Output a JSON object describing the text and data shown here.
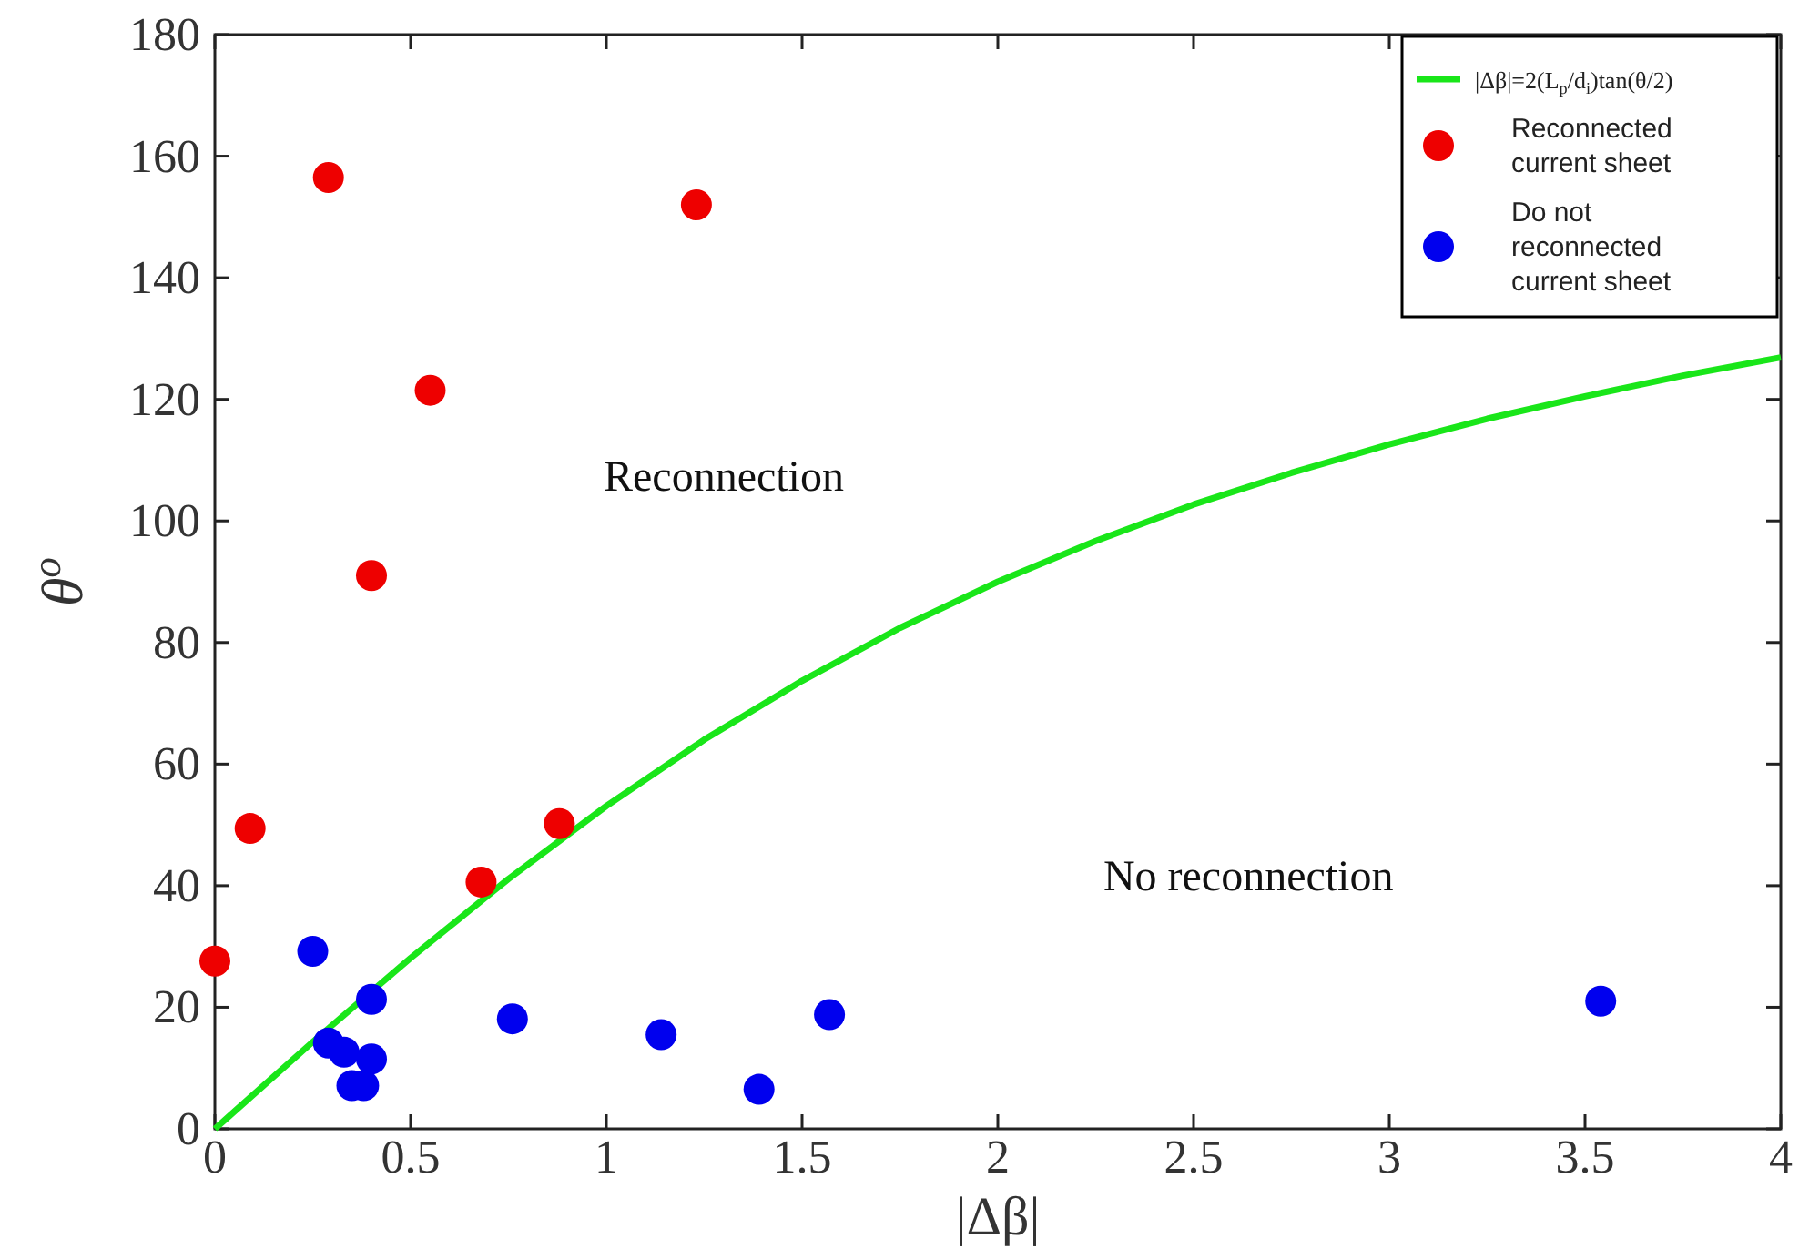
{
  "chart_data": {
    "type": "scatter",
    "xlabel": "|Δβ|",
    "ylabel": "θ$^{o}$",
    "xlim": [
      0,
      4
    ],
    "xticks": [
      0,
      0.5,
      1,
      1.5,
      2,
      2.5,
      3,
      3.5,
      4
    ],
    "ylim": [
      0,
      180
    ],
    "yticks": [
      0,
      20,
      40,
      60,
      80,
      100,
      120,
      140,
      160,
      180
    ],
    "grid": false,
    "legend": "top right",
    "series": [
      {
        "type": "line",
        "name": "|Δβ|=2(L$_{p}$/d$_{i}$)tan(θ/2)",
        "color": "#19e619",
        "line_style": "solid",
        "marker": "none",
        "x": [
          0,
          0.25,
          0.5,
          0.75,
          1,
          1.25,
          1.5,
          1.75,
          2,
          2.25,
          2.5,
          2.75,
          3,
          3.25,
          3.5,
          3.75,
          4
        ],
        "values": [
          0,
          14.3,
          28.1,
          41.1,
          53.1,
          64.0,
          73.7,
          82.4,
          90,
          96.7,
          102.7,
          107.9,
          112.6,
          116.8,
          120.5,
          123.9,
          126.9
        ]
      },
      {
        "name": "Reconnected current sheet",
        "color": "#ee0000",
        "marker": "circle",
        "x": [
          0,
          0.09,
          0.29,
          0.4,
          0.55,
          0.68,
          0.88,
          1.23
        ],
        "values": [
          27.6,
          49.4,
          156.5,
          91,
          121.5,
          40.6,
          50.2,
          152
        ]
      },
      {
        "name": "Do not reconnected current sheet",
        "color": "#0000ee",
        "marker": "circle",
        "x": [
          0.25,
          0.29,
          0.33,
          0.35,
          0.38,
          0.4,
          0.4,
          0.76,
          1.14,
          1.39,
          1.57,
          3.54
        ],
        "values": [
          29.2,
          14.1,
          12.6,
          7.1,
          7.1,
          11.5,
          21.3,
          18.1,
          15.5,
          6.5,
          18.8,
          21
        ]
      }
    ],
    "annotations": [
      "Reconnection",
      "No reconnection"
    ]
  }
}
